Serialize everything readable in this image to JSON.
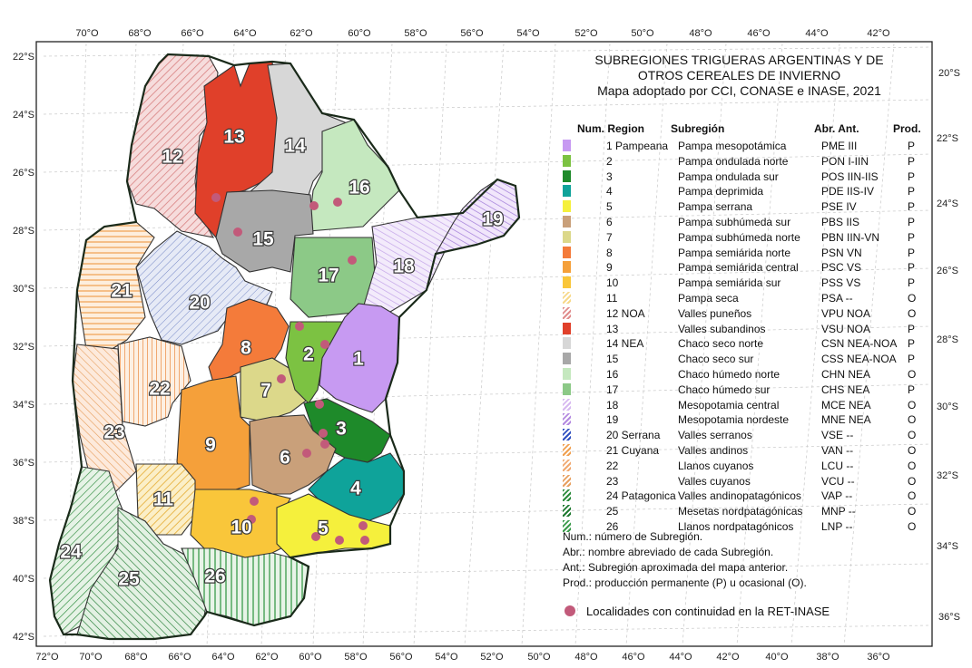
{
  "map": {
    "title_lines": [
      "SUBREGIONES TRIGUERAS ARGENTINAS Y DE",
      "OTROS CEREALES DE INVIERNO",
      "Mapa adoptado por CCI, CONASE e INASE, 2021"
    ],
    "top_ticks": [
      "70°O",
      "68°O",
      "66°O",
      "64°O",
      "62°O",
      "60°O",
      "58°O",
      "56°O",
      "54°O",
      "52°O",
      "50°O",
      "48°O",
      "46°O",
      "44°O",
      "42°O"
    ],
    "bottom_ticks": [
      "72°O",
      "70°O",
      "68°O",
      "66°O",
      "64°O",
      "62°O",
      "60°O",
      "58°O",
      "56°O",
      "54°O",
      "52°O",
      "50°O",
      "48°O",
      "46°O",
      "44°O",
      "42°O",
      "40°O",
      "38°O",
      "36°O"
    ],
    "left_ticks": [
      "22°S",
      "24°S",
      "26°S",
      "28°S",
      "30°S",
      "32°S",
      "34°S",
      "36°S",
      "38°S",
      "40°S",
      "42°S"
    ],
    "right_ticks": [
      "20°S",
      "22°S",
      "24°S",
      "26°S",
      "28°S",
      "30°S",
      "32°S",
      "34°S",
      "36°S"
    ],
    "region_numbers": [
      "1",
      "2",
      "3",
      "4",
      "5",
      "6",
      "7",
      "8",
      "9",
      "10",
      "11",
      "12",
      "13",
      "14",
      "15",
      "16",
      "17",
      "18",
      "19",
      "20",
      "21",
      "22",
      "23",
      "24",
      "25",
      "26"
    ]
  },
  "legend": {
    "headers": {
      "num_region": "Num. Region",
      "subregion": "Subregión",
      "abr_ant": "Abr.  Ant.",
      "prod": "Prod."
    },
    "rows": [
      {
        "num": "1 Pampeana",
        "sub": "Pampa mesopotámica",
        "abr": "PME III",
        "prod": "P",
        "color": "#c79af2",
        "pattern": "solid"
      },
      {
        "num": "2",
        "sub": "Pampa ondulada norte",
        "abr": "PON I-IIN",
        "prod": "P",
        "color": "#7cc242",
        "pattern": "solid"
      },
      {
        "num": "3",
        "sub": "Pampa ondulada sur",
        "abr": "POS IIN-IIS",
        "prod": "P",
        "color": "#1e8a2a",
        "pattern": "solid"
      },
      {
        "num": "4",
        "sub": "Pampa deprimida",
        "abr": "PDE IIS-IV",
        "prod": "P",
        "color": "#0fa39a",
        "pattern": "solid"
      },
      {
        "num": "5",
        "sub": "Pampa serrana",
        "abr": "PSE IV",
        "prod": "P",
        "color": "#f5f03c",
        "pattern": "solid"
      },
      {
        "num": "6",
        "sub": "Pampa subhúmeda sur",
        "abr": "PBS IIS",
        "prod": "P",
        "color": "#c9a07a",
        "pattern": "solid"
      },
      {
        "num": "7",
        "sub": "Pampa subhúmeda norte",
        "abr": "PBN IIN-VN",
        "prod": "P",
        "color": "#dcd88a",
        "pattern": "solid"
      },
      {
        "num": "8",
        "sub": "Pampa semiárida norte",
        "abr": "PSN VN",
        "prod": "P",
        "color": "#f47b3a",
        "pattern": "solid"
      },
      {
        "num": "9",
        "sub": "Pampa semiárida central",
        "abr": "PSC VS",
        "prod": "P",
        "color": "#f5a03a",
        "pattern": "solid"
      },
      {
        "num": "10",
        "sub": "Pampa semiárida sur",
        "abr": "PSS VS",
        "prod": "P",
        "color": "#f9c63a",
        "pattern": "solid"
      },
      {
        "num": "11",
        "sub": "Pampa seca",
        "abr": "PSA --",
        "prod": "O",
        "color": "#f7d98a",
        "pattern": "hatch"
      },
      {
        "num": "12 NOA",
        "sub": "Valles puneños",
        "abr": "VPU NOA",
        "prod": "O",
        "color": "#e08c8c",
        "pattern": "hatch"
      },
      {
        "num": "13",
        "sub": "Valles subandinos",
        "abr": "VSU NOA",
        "prod": "P",
        "color": "#e0402a",
        "pattern": "solid"
      },
      {
        "num": "14 NEA",
        "sub": "Chaco seco norte",
        "abr": "CSN NEA-NOA",
        "prod": "P",
        "color": "#d7d7d7",
        "pattern": "solid"
      },
      {
        "num": "15",
        "sub": "Chaco seco sur",
        "abr": "CSS NEA-NOA",
        "prod": "P",
        "color": "#a8a8a8",
        "pattern": "solid"
      },
      {
        "num": "16",
        "sub": "Chaco húmedo norte",
        "abr": "CHN NEA",
        "prod": "O",
        "color": "#c5e8bf",
        "pattern": "solid"
      },
      {
        "num": "17",
        "sub": "Chaco húmedo sur",
        "abr": "CHS NEA",
        "prod": "P",
        "color": "#8cc987",
        "pattern": "solid"
      },
      {
        "num": "18",
        "sub": "Mesopotamia central",
        "abr": "MCE NEA",
        "prod": "O",
        "color": "#d7b9f0",
        "pattern": "hatch"
      },
      {
        "num": "19",
        "sub": "Mesopotamia nordeste",
        "abr": "MNE NEA",
        "prod": "O",
        "color": "#b48ae0",
        "pattern": "hatch"
      },
      {
        "num": "20 Serrana",
        "sub": "Valles serranos",
        "abr": "VSE --",
        "prod": "O",
        "color": "#3050c0",
        "pattern": "hatch"
      },
      {
        "num": "21 Cuyana",
        "sub": "Valles andinos",
        "abr": "VAN --",
        "prod": "O",
        "color": "#f0a050",
        "pattern": "hatch"
      },
      {
        "num": "22",
        "sub": "Llanos cuyanos",
        "abr": "LCU --",
        "prod": "O",
        "color": "#f0a870",
        "pattern": "hatch"
      },
      {
        "num": "23",
        "sub": "Valles cuyanos",
        "abr": "VCU --",
        "prod": "O",
        "color": "#e8a060",
        "pattern": "hatch"
      },
      {
        "num": "24 Patagonica",
        "sub": "Valles andinopatagónicos",
        "abr": "VAP --",
        "prod": "O",
        "color": "#2a8a3a",
        "pattern": "hatch"
      },
      {
        "num": "25",
        "sub": "Mesetas nordpatagónicas",
        "abr": "MNP --",
        "prod": "O",
        "color": "#1e7a30",
        "pattern": "hatch"
      },
      {
        "num": "26",
        "sub": "Llanos nordpatagónicos",
        "abr": "LNP --",
        "prod": "O",
        "color": "#3a9a4a",
        "pattern": "hatch"
      }
    ],
    "notes": [
      "Num.: número de Subregión.",
      "Abr.: nombre abreviado de cada Subregión.",
      "Ant.: Subregión aproximada del mapa anterior.",
      "Prod.: producción permanente (P) u ocasional (O)."
    ],
    "localities_label": "Localidades con continuidad en la RET-INASE",
    "localities_color": "#c25a7a"
  }
}
